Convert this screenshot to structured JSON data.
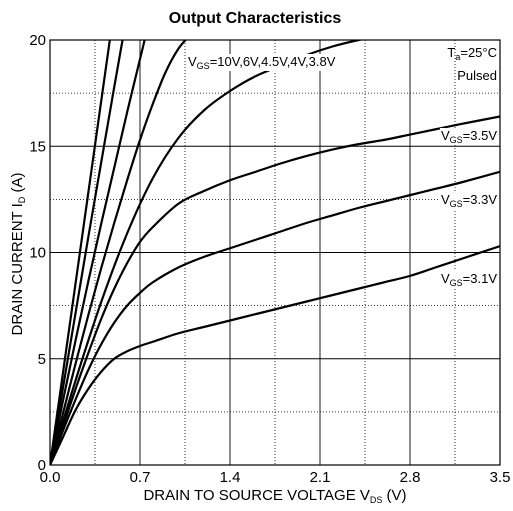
{
  "chart_data": {
    "type": "line",
    "title": "Output Characteristics",
    "xlabel": {
      "main": "DRAIN TO SOURCE VOLTAGE V",
      "sub": "DS",
      "unit": " (V)"
    },
    "ylabel": {
      "main": "DRAIN CURRENT I",
      "sub": "D",
      "unit": " (A)"
    },
    "xlim": [
      0,
      3.5
    ],
    "ylim": [
      0,
      20
    ],
    "xticks": [
      0.0,
      0.7,
      1.4,
      2.1,
      2.8,
      3.5
    ],
    "xtick_labels": [
      "0.0",
      "0.7",
      "1.4",
      "2.1",
      "2.8",
      "3.5"
    ],
    "yticks": [
      0,
      5,
      10,
      15,
      20
    ],
    "ytick_labels": [
      "0",
      "5",
      "10",
      "15",
      "20"
    ],
    "grid": {
      "major": true,
      "minor_dotted": true
    },
    "series": [
      {
        "name": "VGS=10V",
        "x": [
          0,
          0.1,
          0.2,
          0.3,
          0.4,
          0.47,
          0.5
        ],
        "y": [
          0,
          4.3,
          8.6,
          12.9,
          17.2,
          20.2,
          21.5
        ]
      },
      {
        "name": "VGS=6V",
        "x": [
          0,
          0.1,
          0.2,
          0.3,
          0.4,
          0.5,
          0.57,
          0.6
        ],
        "y": [
          0,
          3.6,
          7.2,
          10.8,
          14.3,
          17.8,
          20.2,
          21.2
        ]
      },
      {
        "name": "VGS=4.5V",
        "x": [
          0,
          0.1,
          0.2,
          0.3,
          0.4,
          0.5,
          0.6,
          0.7,
          0.74
        ],
        "y": [
          0,
          3.0,
          5.9,
          8.7,
          11.4,
          14.0,
          16.6,
          19.1,
          20.1
        ]
      },
      {
        "name": "VGS=4V",
        "x": [
          0,
          0.1,
          0.2,
          0.3,
          0.4,
          0.5,
          0.6,
          0.7,
          0.8,
          0.9,
          1.0,
          1.1
        ],
        "y": [
          0,
          2.4,
          4.8,
          7.1,
          9.3,
          11.4,
          13.4,
          15.3,
          17.0,
          18.5,
          19.6,
          20.3
        ]
      },
      {
        "name": "VGS=3.8V",
        "x": [
          0,
          0.2,
          0.4,
          0.6,
          0.8,
          1.0,
          1.2,
          1.4,
          1.6,
          1.8,
          2.0,
          2.2,
          2.4,
          2.5
        ],
        "y": [
          0,
          4.0,
          7.7,
          10.9,
          13.5,
          15.4,
          16.7,
          17.6,
          18.3,
          18.8,
          19.3,
          19.7,
          20.0,
          20.1
        ]
      },
      {
        "name": "VGS=3.5V",
        "x": [
          0,
          0.1,
          0.2,
          0.3,
          0.4,
          0.5,
          0.6,
          0.7,
          0.8,
          1.0,
          1.2,
          1.4,
          1.6,
          1.8,
          2.0,
          2.2,
          2.4,
          2.6,
          2.8,
          3.0,
          3.2,
          3.5
        ],
        "y": [
          0,
          1.8,
          3.6,
          5.3,
          6.9,
          8.3,
          9.5,
          10.5,
          11.2,
          12.3,
          12.9,
          13.4,
          13.8,
          14.2,
          14.55,
          14.85,
          15.1,
          15.3,
          15.55,
          15.8,
          16.05,
          16.4
        ]
      },
      {
        "name": "VGS=3.3V",
        "x": [
          0,
          0.1,
          0.2,
          0.3,
          0.4,
          0.5,
          0.6,
          0.7,
          0.8,
          1.0,
          1.2,
          1.4,
          1.6,
          1.8,
          2.0,
          2.2,
          2.4,
          2.6,
          2.8,
          3.0,
          3.2,
          3.5
        ],
        "y": [
          0,
          1.6,
          3.1,
          4.5,
          5.7,
          6.7,
          7.5,
          8.1,
          8.6,
          9.3,
          9.8,
          10.2,
          10.6,
          11.0,
          11.4,
          11.75,
          12.1,
          12.4,
          12.7,
          13.0,
          13.3,
          13.8
        ]
      },
      {
        "name": "VGS=3.1V",
        "x": [
          0,
          0.1,
          0.2,
          0.3,
          0.4,
          0.5,
          0.6,
          0.7,
          0.8,
          1.0,
          1.2,
          1.4,
          1.6,
          1.8,
          2.0,
          2.2,
          2.4,
          2.6,
          2.8,
          3.0,
          3.2,
          3.5
        ],
        "y": [
          0,
          1.3,
          2.6,
          3.6,
          4.4,
          5.0,
          5.35,
          5.6,
          5.8,
          6.2,
          6.5,
          6.8,
          7.1,
          7.4,
          7.7,
          8.0,
          8.3,
          8.6,
          8.9,
          9.3,
          9.7,
          10.3
        ]
      }
    ],
    "annotations": [
      {
        "id": "vgs-high",
        "prefix": "V",
        "sub": "GS",
        "text": "=10V,6V,4.5V,4V,3.8V"
      },
      {
        "id": "ta",
        "prefix": "T",
        "sub": "a",
        "text": "=25°C"
      },
      {
        "id": "pulsed",
        "text": "Pulsed"
      },
      {
        "id": "vgs-35",
        "prefix": "V",
        "sub": "GS",
        "text": "=3.5V"
      },
      {
        "id": "vgs-33",
        "prefix": "V",
        "sub": "GS",
        "text": "=3.3V"
      },
      {
        "id": "vgs-31",
        "prefix": "V",
        "sub": "GS",
        "text": "=3.1V"
      }
    ]
  }
}
